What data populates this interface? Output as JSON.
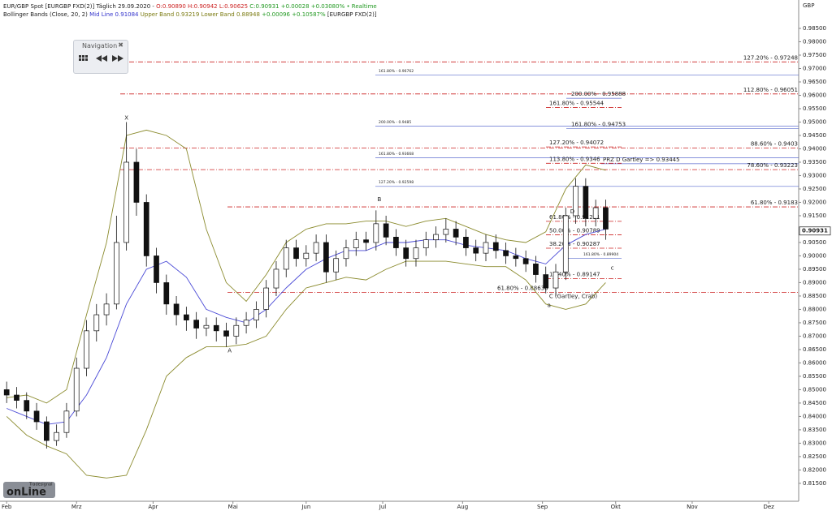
{
  "chart_data": {
    "type": "candlestick",
    "title": "EUR/GBP Spot [EURGBP FXD(2)] Täglich 29.09.2020 -",
    "ohlc": "O:0.90890 H:0.90942 L:0.90625",
    "close_text": "C:0.90931 +0.00028 +0.03080%",
    "realtime": "• Realtime",
    "indicator": "Bollinger Bands (Close, 20, 2)",
    "mid_text": "Mid Line 0.91084",
    "upper_text": "Upper Band 0.93219",
    "lower_text": "Lower Band 0.88948",
    "change_text": "+0.00096 +0.10587%",
    "symbol": "[EURGBP FXD(2)]",
    "y_axis_title": "GBP",
    "navigation": "Navigation",
    "logo_small": "Tradesignal",
    "logo": "onLine",
    "last_price": 0.90931,
    "xlim": [
      -2,
      238
    ],
    "ylim": [
      0.8083,
      0.9944
    ],
    "xticks": [
      {
        "value": 0,
        "label": "Feb"
      },
      {
        "value": 21,
        "label": "Mrz"
      },
      {
        "value": 44,
        "label": "Apr"
      },
      {
        "value": 68,
        "label": "Mai"
      },
      {
        "value": 90,
        "label": "Jun"
      },
      {
        "value": 113,
        "label": "Jul"
      },
      {
        "value": 137,
        "label": "Aug"
      },
      {
        "value": 161,
        "label": "Sep"
      },
      {
        "value": 183,
        "label": "Okt"
      },
      {
        "value": 206,
        "label": "Nov"
      },
      {
        "value": 229,
        "label": "Dez"
      }
    ],
    "yticks": [
      {
        "value": 0.985,
        "label": "0.98500"
      },
      {
        "value": 0.98,
        "label": "0.98000"
      },
      {
        "value": 0.975,
        "label": "0.97500"
      },
      {
        "value": 0.97,
        "label": "0.97000"
      },
      {
        "value": 0.965,
        "label": "0.96500"
      },
      {
        "value": 0.96,
        "label": "0.96000"
      },
      {
        "value": 0.955,
        "label": "0.95500"
      },
      {
        "value": 0.95,
        "label": "0.95000"
      },
      {
        "value": 0.945,
        "label": "0.94500"
      },
      {
        "value": 0.94,
        "label": "0.94000"
      },
      {
        "value": 0.935,
        "label": "0.93500"
      },
      {
        "value": 0.93,
        "label": "0.93000"
      },
      {
        "value": 0.925,
        "label": "0.92500"
      },
      {
        "value": 0.92,
        "label": "0.92000"
      },
      {
        "value": 0.915,
        "label": "0.91500"
      },
      {
        "value": 0.91,
        "label": "0.91000"
      },
      {
        "value": 0.905,
        "label": "0.90500"
      },
      {
        "value": 0.9,
        "label": "0.90000"
      },
      {
        "value": 0.895,
        "label": "0.89500"
      },
      {
        "value": 0.89,
        "label": "0.89000"
      },
      {
        "value": 0.885,
        "label": "0.88500"
      },
      {
        "value": 0.88,
        "label": "0.88000"
      },
      {
        "value": 0.875,
        "label": "0.87500"
      },
      {
        "value": 0.87,
        "label": "0.87000"
      },
      {
        "value": 0.865,
        "label": "0.86500"
      },
      {
        "value": 0.86,
        "label": "0.86000"
      },
      {
        "value": 0.855,
        "label": "0.85500"
      },
      {
        "value": 0.85,
        "label": "0.85000"
      },
      {
        "value": 0.845,
        "label": "0.84500"
      },
      {
        "value": 0.84,
        "label": "0.84000"
      },
      {
        "value": 0.835,
        "label": "0.83500"
      },
      {
        "value": 0.83,
        "label": "0.83000"
      },
      {
        "value": 0.825,
        "label": "0.82500"
      },
      {
        "value": 0.82,
        "label": "0.82000"
      },
      {
        "value": 0.815,
        "label": "0.81500"
      }
    ],
    "x": [
      0,
      3,
      6,
      9,
      12,
      15,
      18,
      21,
      24,
      27,
      30,
      33,
      36,
      39,
      42,
      45,
      48,
      51,
      54,
      57,
      60,
      63,
      66,
      69,
      72,
      75,
      78,
      81,
      84,
      87,
      90,
      93,
      96,
      99,
      102,
      105,
      108,
      111,
      114,
      117,
      120,
      123,
      126,
      129,
      132,
      135,
      138,
      141,
      144,
      147,
      150,
      153,
      156,
      159,
      162,
      165,
      168,
      171,
      174,
      177,
      180
    ],
    "open": [
      0.85,
      0.848,
      0.846,
      0.842,
      0.838,
      0.831,
      0.834,
      0.842,
      0.858,
      0.872,
      0.878,
      0.882,
      0.905,
      0.935,
      0.92,
      0.9,
      0.89,
      0.882,
      0.878,
      0.876,
      0.873,
      0.874,
      0.872,
      0.87,
      0.874,
      0.876,
      0.88,
      0.888,
      0.895,
      0.903,
      0.899,
      0.901,
      0.905,
      0.894,
      0.899,
      0.903,
      0.906,
      0.905,
      0.912,
      0.907,
      0.903,
      0.899,
      0.903,
      0.906,
      0.908,
      0.91,
      0.907,
      0.903,
      0.901,
      0.905,
      0.902,
      0.9,
      0.899,
      0.897,
      0.893,
      0.888,
      0.894,
      0.915,
      0.926,
      0.914,
      0.918
    ],
    "high": [
      0.853,
      0.851,
      0.849,
      0.845,
      0.84,
      0.837,
      0.845,
      0.862,
      0.876,
      0.882,
      0.886,
      0.915,
      0.95,
      0.94,
      0.923,
      0.903,
      0.893,
      0.885,
      0.881,
      0.879,
      0.877,
      0.877,
      0.875,
      0.877,
      0.879,
      0.883,
      0.891,
      0.898,
      0.906,
      0.906,
      0.904,
      0.908,
      0.908,
      0.902,
      0.906,
      0.909,
      0.909,
      0.917,
      0.915,
      0.91,
      0.906,
      0.906,
      0.909,
      0.911,
      0.914,
      0.913,
      0.91,
      0.906,
      0.908,
      0.908,
      0.905,
      0.903,
      0.902,
      0.9,
      0.896,
      0.897,
      0.918,
      0.929,
      0.929,
      0.921,
      0.921
    ],
    "low": [
      0.845,
      0.843,
      0.839,
      0.835,
      0.828,
      0.829,
      0.832,
      0.84,
      0.855,
      0.868,
      0.874,
      0.88,
      0.902,
      0.915,
      0.896,
      0.886,
      0.878,
      0.874,
      0.872,
      0.869,
      0.87,
      0.868,
      0.866,
      0.867,
      0.871,
      0.873,
      0.877,
      0.885,
      0.892,
      0.896,
      0.896,
      0.898,
      0.89,
      0.891,
      0.896,
      0.9,
      0.902,
      0.902,
      0.904,
      0.9,
      0.896,
      0.896,
      0.9,
      0.903,
      0.905,
      0.904,
      0.9,
      0.898,
      0.898,
      0.899,
      0.897,
      0.896,
      0.894,
      0.89,
      0.886,
      0.885,
      0.891,
      0.912,
      0.911,
      0.911,
      0.906
    ],
    "close": [
      0.848,
      0.846,
      0.842,
      0.838,
      0.831,
      0.834,
      0.842,
      0.858,
      0.872,
      0.878,
      0.882,
      0.905,
      0.935,
      0.92,
      0.9,
      0.89,
      0.882,
      0.878,
      0.876,
      0.873,
      0.874,
      0.872,
      0.87,
      0.874,
      0.876,
      0.88,
      0.888,
      0.895,
      0.903,
      0.899,
      0.901,
      0.905,
      0.894,
      0.899,
      0.903,
      0.906,
      0.905,
      0.912,
      0.907,
      0.903,
      0.899,
      0.903,
      0.906,
      0.908,
      0.91,
      0.907,
      0.903,
      0.901,
      0.905,
      0.902,
      0.9,
      0.899,
      0.897,
      0.893,
      0.888,
      0.894,
      0.915,
      0.926,
      0.914,
      0.918,
      0.91
    ],
    "bands": {
      "x": [
        0,
        6,
        12,
        18,
        24,
        30,
        36,
        42,
        48,
        54,
        60,
        66,
        72,
        78,
        84,
        90,
        96,
        102,
        108,
        114,
        120,
        126,
        132,
        138,
        144,
        150,
        156,
        162,
        168,
        174,
        180
      ],
      "series": [
        {
          "color": "#8b8b2e",
          "values": [
            0.847,
            0.848,
            0.845,
            0.85,
            0.878,
            0.905,
            0.945,
            0.947,
            0.945,
            0.94,
            0.91,
            0.89,
            0.883,
            0.893,
            0.905,
            0.91,
            0.912,
            0.912,
            0.913,
            0.913,
            0.911,
            0.913,
            0.914,
            0.911,
            0.908,
            0.906,
            0.905,
            0.909,
            0.925,
            0.934,
            0.932
          ]
        },
        {
          "color": "#4a4ad6",
          "values": [
            0.843,
            0.84,
            0.837,
            0.838,
            0.848,
            0.862,
            0.882,
            0.895,
            0.898,
            0.892,
            0.88,
            0.877,
            0.875,
            0.88,
            0.888,
            0.895,
            0.899,
            0.902,
            0.902,
            0.905,
            0.905,
            0.906,
            0.906,
            0.904,
            0.903,
            0.902,
            0.899,
            0.897,
            0.904,
            0.908,
            0.91
          ]
        },
        {
          "color": "#8b8b2e",
          "values": [
            0.84,
            0.833,
            0.829,
            0.826,
            0.818,
            0.817,
            0.818,
            0.835,
            0.855,
            0.862,
            0.866,
            0.866,
            0.867,
            0.87,
            0.88,
            0.888,
            0.89,
            0.892,
            0.891,
            0.895,
            0.898,
            0.898,
            0.898,
            0.897,
            0.896,
            0.896,
            0.891,
            0.882,
            0.88,
            0.882,
            0.89
          ]
        }
      ]
    },
    "levels": [
      {
        "label": "127.20% - 0.97248",
        "value": 0.97248,
        "color": "#cc2222"
      },
      {
        "label": "161.80% - 0.96762",
        "value": 0.96762,
        "color": "#5566cc"
      },
      {
        "label": "112.80% - 0.96051",
        "value": 0.96051,
        "color": "#cc2222"
      },
      {
        "label": "200.00% - 0.95888",
        "value": 0.95888,
        "color": "#5566cc"
      },
      {
        "label": "161.80% - 0.95544",
        "value": 0.95544,
        "color": "#cc2222"
      },
      {
        "label": "200.00% - 0.9485",
        "value": 0.9485,
        "color": "#5566cc"
      },
      {
        "label": "161.80% - 0.94753",
        "value": 0.94753,
        "color": "#5566cc"
      },
      {
        "label": "127.20% - 0.94072",
        "value": 0.94072,
        "color": "#cc2222"
      },
      {
        "label": "88.60% - 0.9403",
        "value": 0.9403,
        "color": "#cc2222"
      },
      {
        "label": "161.80% - 0.93668",
        "value": 0.93668,
        "color": "#5566cc"
      },
      {
        "label": "PRZ D Gartley => 0.93445",
        "value": 0.93445,
        "color": "#5566cc"
      },
      {
        "label": "113.80% - 0.9346",
        "value": 0.9346,
        "color": "#cc2222"
      },
      {
        "label": "78.60% - 0.93223",
        "value": 0.93223,
        "color": "#cc2222"
      },
      {
        "label": "127.20% - 0.92598",
        "value": 0.92598,
        "color": "#5566cc"
      },
      {
        "label": "61.80% - 0.9183",
        "value": 0.9183,
        "color": "#cc2222"
      },
      {
        "label": "61.80% - 0.91291",
        "value": 0.91291,
        "color": "#cc2222"
      },
      {
        "label": "50.00% - 0.90789",
        "value": 0.90789,
        "color": "#cc2222"
      },
      {
        "label": "38.20% - 0.90287",
        "value": 0.90287,
        "color": "#cc2222"
      },
      {
        "label": "161.80% - 0.89904",
        "value": 0.89904,
        "color": "#5566cc"
      },
      {
        "label": "11.40% - 0.89147",
        "value": 0.89147,
        "color": "#cc2222"
      },
      {
        "label": "61.80% - 0.88630",
        "value": 0.8863,
        "color": "#cc2222"
      }
    ],
    "pattern_labels": [
      "X",
      "A",
      "B",
      "C (Gartley, Crab)",
      "D",
      "a",
      "c"
    ]
  }
}
